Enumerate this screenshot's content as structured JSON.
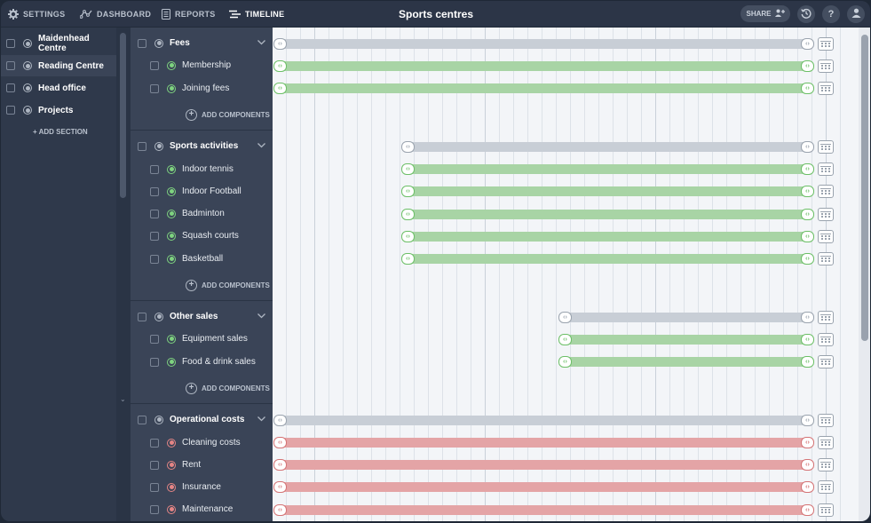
{
  "nav": {
    "settings": "SETTINGS",
    "dashboard": "DASHBOARD",
    "reports": "REPORTS",
    "timeline": "TIMELINE",
    "title": "Sports centres",
    "share": "SHARE"
  },
  "sidebar": {
    "items": [
      {
        "label": "Maidenhead Centre"
      },
      {
        "label": "Reading Centre"
      },
      {
        "label": "Head office"
      },
      {
        "label": "Projects"
      }
    ],
    "add_section": "+ ADD SECTION"
  },
  "groups": [
    {
      "label": "Fees",
      "children": [
        {
          "label": "Membership"
        },
        {
          "label": "Joining fees"
        }
      ],
      "add_components": "ADD COMPONENTS"
    },
    {
      "label": "Sports activities",
      "children": [
        {
          "label": "Indoor tennis"
        },
        {
          "label": "Indoor Football"
        },
        {
          "label": "Badminton"
        },
        {
          "label": "Squash courts"
        },
        {
          "label": "Basketball"
        }
      ],
      "add_components": "ADD COMPONENTS"
    },
    {
      "label": "Other sales",
      "children": [
        {
          "label": "Equipment sales"
        },
        {
          "label": "Food & drink sales"
        }
      ],
      "add_components": "ADD COMPONENTS"
    },
    {
      "label": "Operational costs",
      "children": [
        {
          "label": "Cleaning costs"
        },
        {
          "label": "Rent"
        },
        {
          "label": "Insurance"
        },
        {
          "label": "Maintenance"
        }
      ]
    }
  ],
  "colors": {
    "revenue": "#a8d4a5",
    "cost": "#e4a4a6",
    "group": "#c8ced6"
  }
}
